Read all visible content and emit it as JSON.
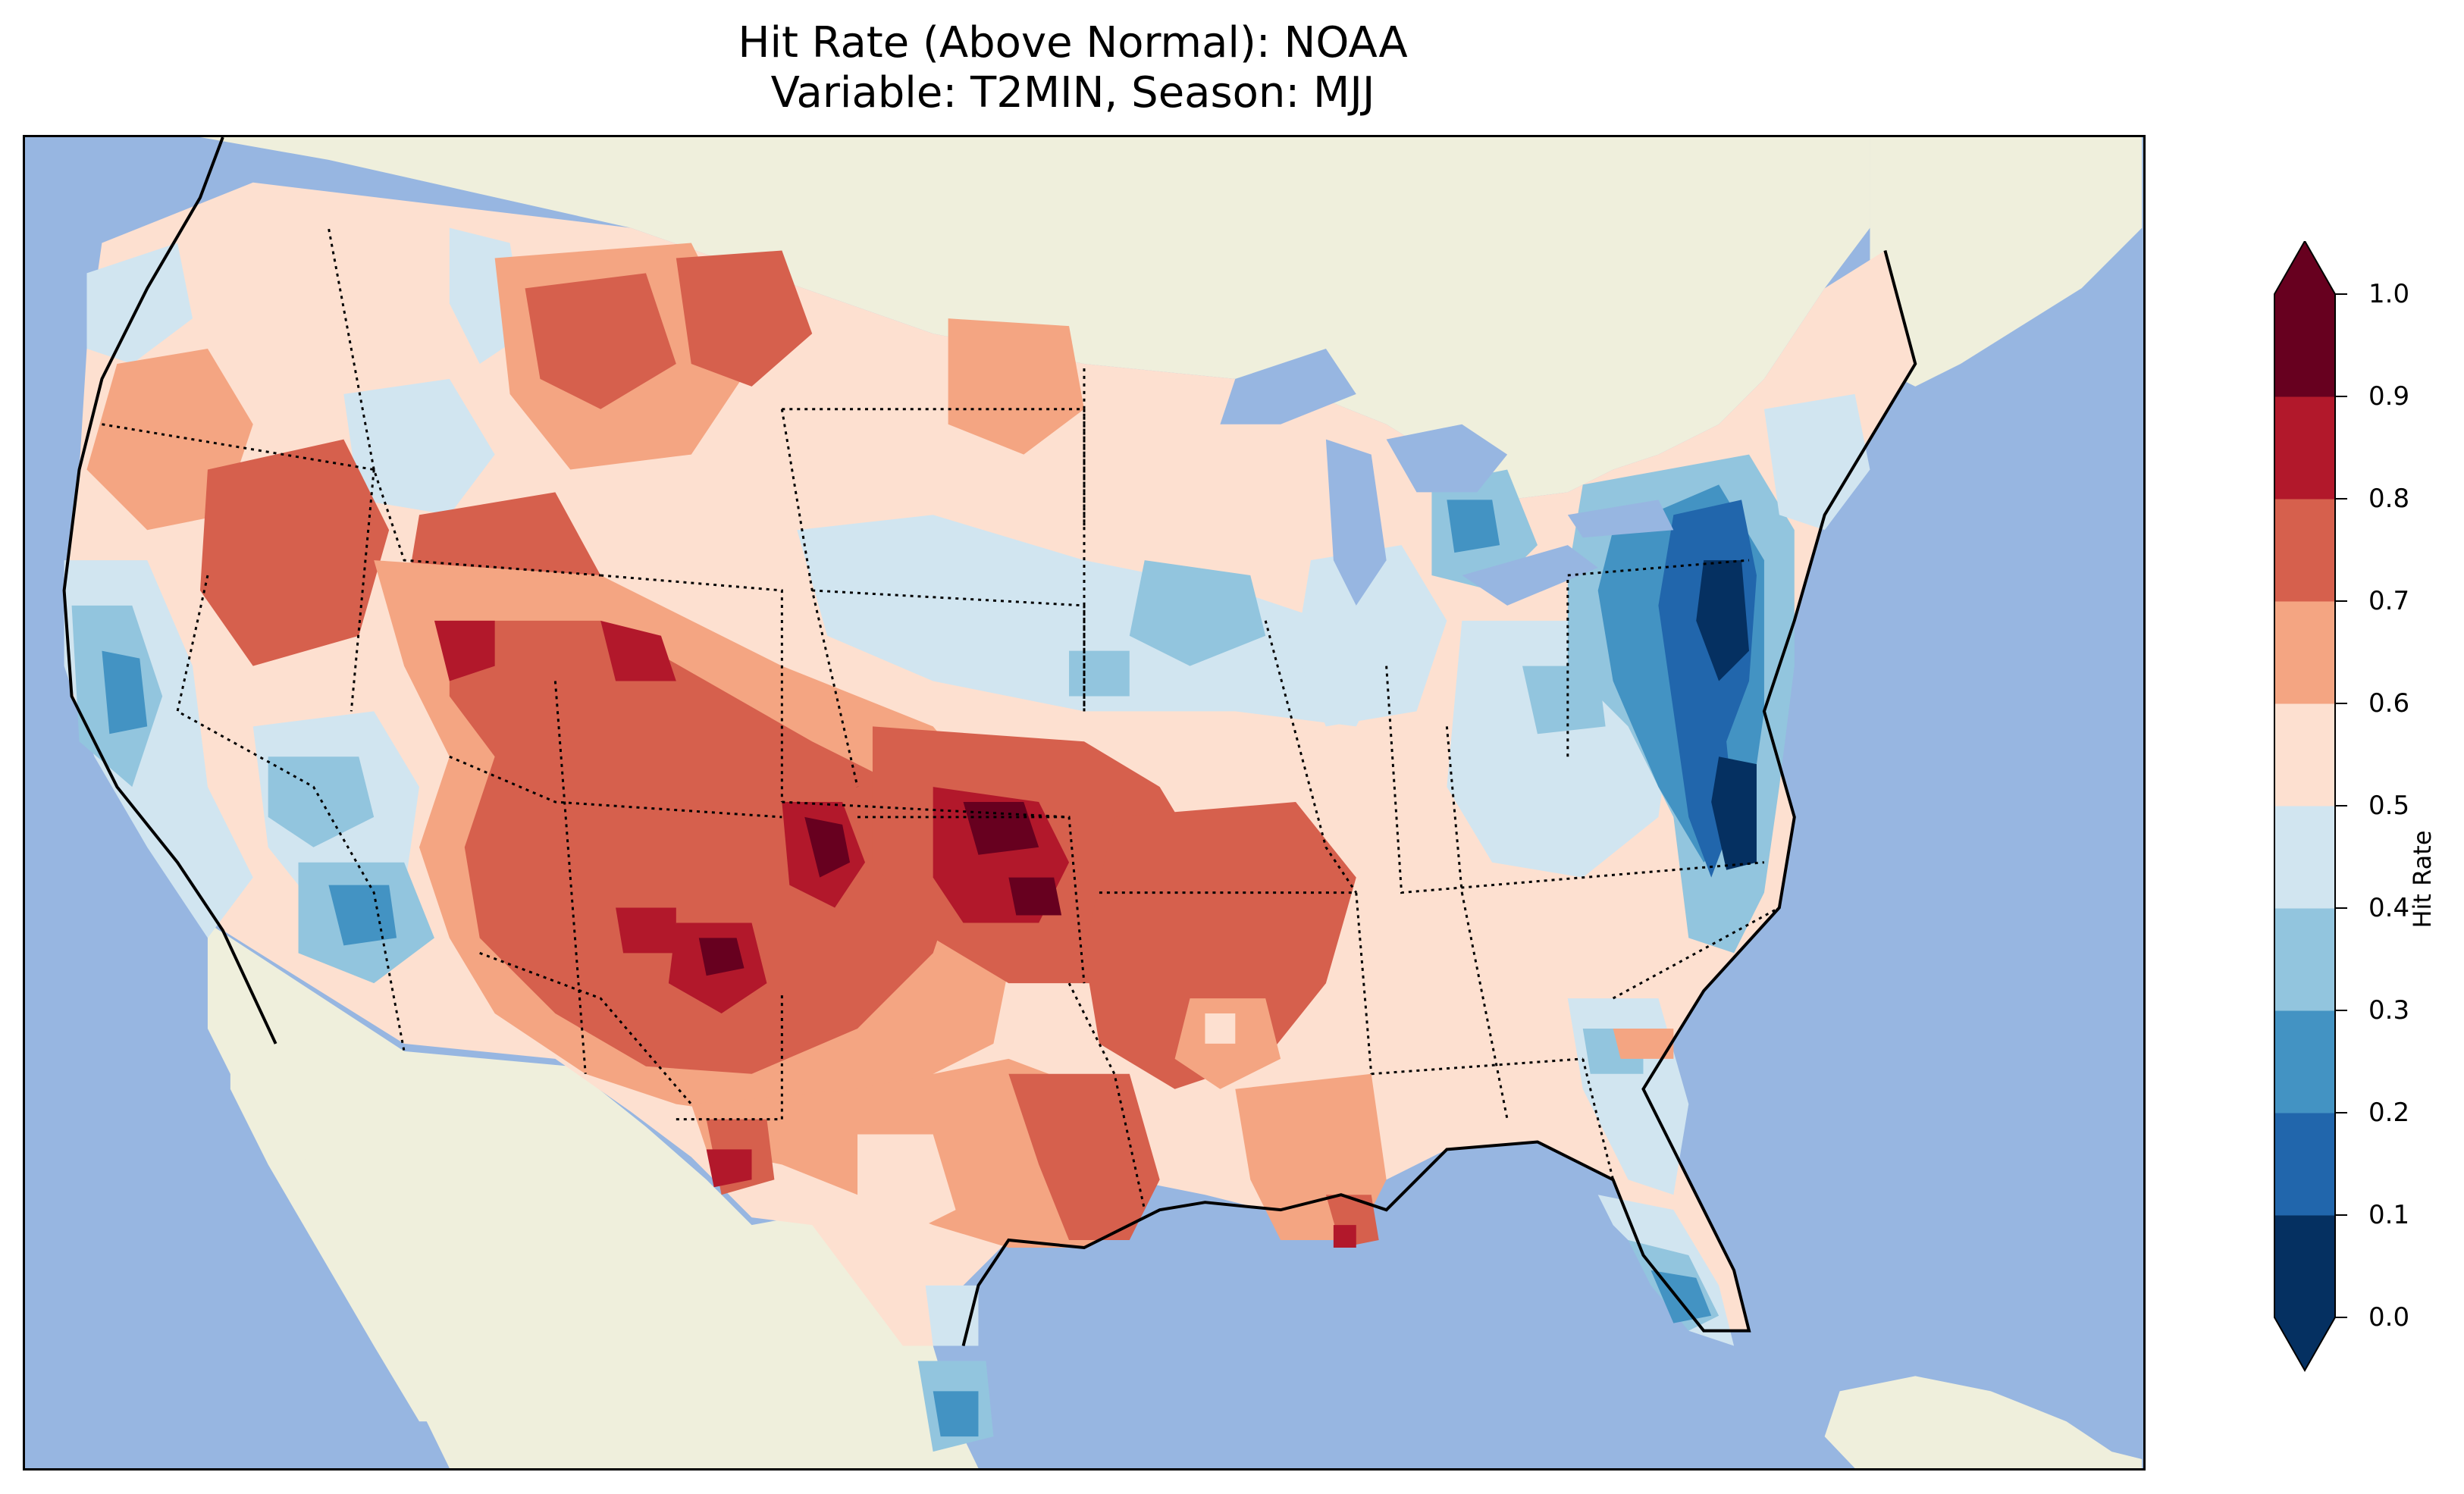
{
  "title": {
    "line1": "Hit Rate (Above Normal): NOAA",
    "line2": "Variable: T2MIN, Season: MJJ"
  },
  "colorbar": {
    "label": "Hit Rate",
    "ticks": [
      "0.0",
      "0.1",
      "0.2",
      "0.3",
      "0.4",
      "0.5",
      "0.6",
      "0.7",
      "0.8",
      "0.9",
      "1.0"
    ],
    "bins": [
      {
        "range": "0.0-0.1",
        "color": "#053061"
      },
      {
        "range": "0.1-0.2",
        "color": "#2166ac"
      },
      {
        "range": "0.2-0.3",
        "color": "#4393c3"
      },
      {
        "range": "0.3-0.4",
        "color": "#92c5de"
      },
      {
        "range": "0.4-0.5",
        "color": "#d1e5f0"
      },
      {
        "range": "0.5-0.6",
        "color": "#fde0d0"
      },
      {
        "range": "0.6-0.7",
        "color": "#f4a582"
      },
      {
        "range": "0.7-0.8",
        "color": "#d6604d"
      },
      {
        "range": "0.8-0.9",
        "color": "#b2182b"
      },
      {
        "range": "0.9-1.0",
        "color": "#67001f"
      }
    ]
  },
  "map": {
    "ocean_color": "#97b6e1",
    "land_color": "#efefdc",
    "lake_color": "#97b6e1",
    "extent": "CONUS"
  }
}
